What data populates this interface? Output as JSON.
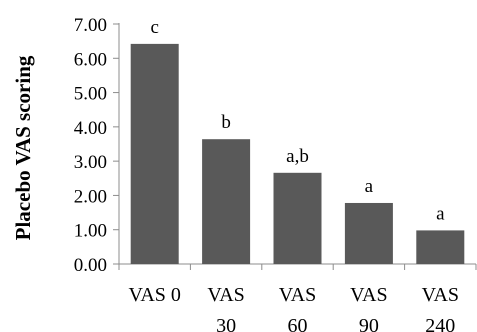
{
  "chart_data": {
    "type": "bar",
    "title": "",
    "xlabel": "",
    "ylabel": "Placebo VAS scoring",
    "ylim": [
      0,
      7
    ],
    "yticks": [
      "0.00",
      "1.00",
      "2.00",
      "3.00",
      "4.00",
      "5.00",
      "6.00",
      "7.00"
    ],
    "grid": false,
    "bar_color": "#595959",
    "categories": [
      {
        "line1": "VAS 0",
        "line2": ""
      },
      {
        "line1": "VAS",
        "line2": "30"
      },
      {
        "line1": "VAS",
        "line2": "60"
      },
      {
        "line1": "VAS",
        "line2": "90"
      },
      {
        "line1": "VAS",
        "line2": "240"
      }
    ],
    "values": [
      6.42,
      3.64,
      2.66,
      1.78,
      0.98
    ],
    "data_labels": [
      "c",
      "b",
      "a,b",
      "a",
      "a"
    ]
  }
}
